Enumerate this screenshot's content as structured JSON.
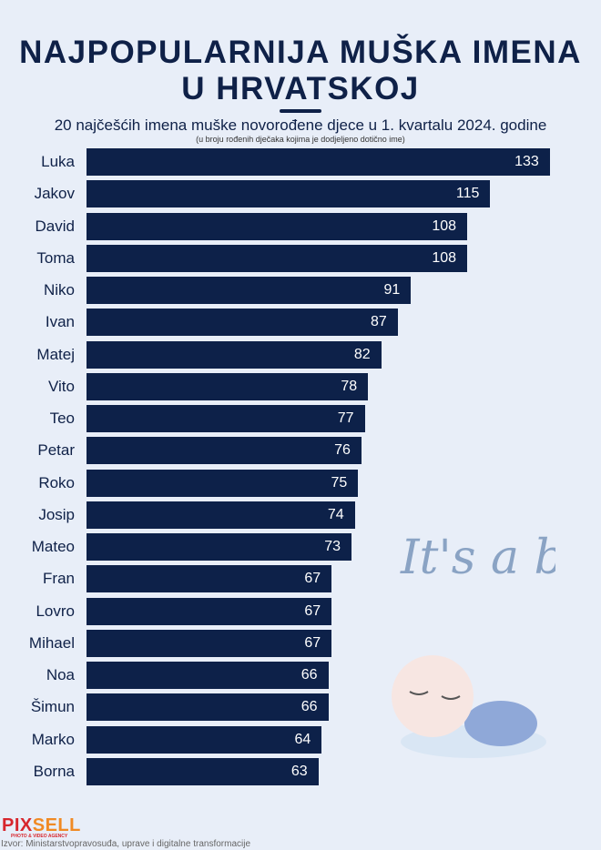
{
  "chart_data": {
    "type": "bar",
    "title": "NAJPOPULARNIJA MUŠKA IMENA U HRVATSKOJ",
    "title_lines": [
      "NAJPOPULARNIJA MUŠKA IMENA",
      "U HRVATSKOJ"
    ],
    "subtitle": "20 najčešćih imena muške novorođene djece u 1. kvartalu 2024. godine",
    "note": "(u broju rođenih dječaka kojima je dodjeljeno dotično ime)",
    "orientation": "horizontal",
    "categories": [
      "Luka",
      "Jakov",
      "David",
      "Toma",
      "Niko",
      "Ivan",
      "Matej",
      "Vito",
      "Teo",
      "Petar",
      "Roko",
      "Josip",
      "Mateo",
      "Fran",
      "Lovro",
      "Mihael",
      "Noa",
      "Šimun",
      "Marko",
      "Borna"
    ],
    "values": [
      133,
      115,
      108,
      108,
      91,
      87,
      82,
      78,
      77,
      76,
      75,
      74,
      73,
      67,
      67,
      67,
      66,
      66,
      64,
      63
    ],
    "bar_color": "#0d2149"
  },
  "decoration": {
    "text": "It's a boy"
  },
  "footer": {
    "logo_red": "PIX",
    "logo_orange": "SELL",
    "agency": "PHOTO & VIDEO AGENCY",
    "source": "Izvor: Ministarstvopravosuđa, uprave i digitalne transformacije"
  }
}
